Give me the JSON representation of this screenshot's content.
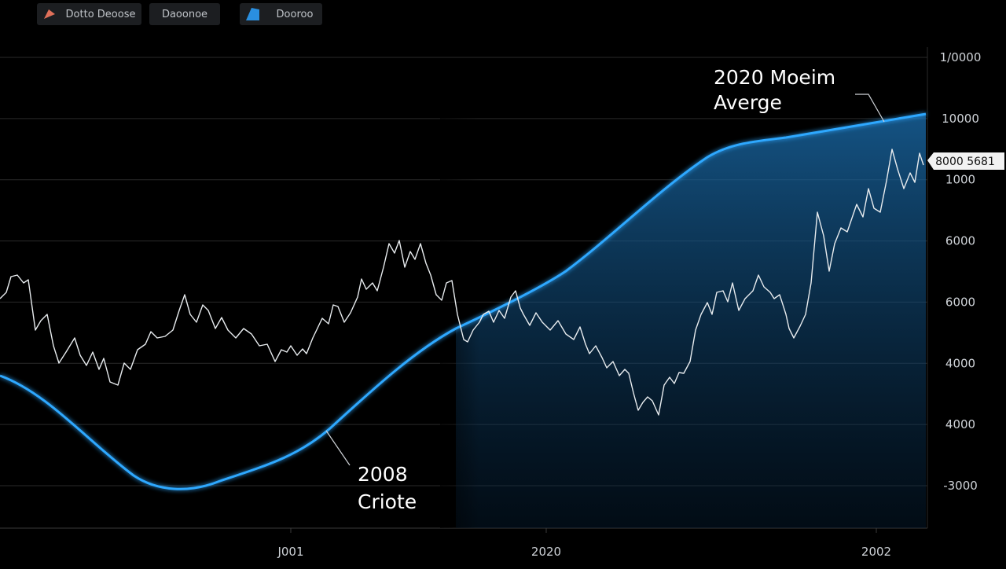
{
  "toolbar": {
    "buttons": [
      "Dotto Deoose",
      "Daoonoe",
      "Dooroo"
    ]
  },
  "y_axis_labels": [
    "1/0000",
    "10000",
    "1000",
    "6000",
    "6000",
    "4000",
    "4000",
    "-3000"
  ],
  "x_axis_labels": [
    "J001",
    "2020",
    "2002"
  ],
  "annotations": [
    {
      "lines": [
        "2020 Moeim",
        "Averge"
      ]
    },
    {
      "lines": [
        "2008",
        "Criote"
      ]
    }
  ],
  "badge": "8000 5681"
}
